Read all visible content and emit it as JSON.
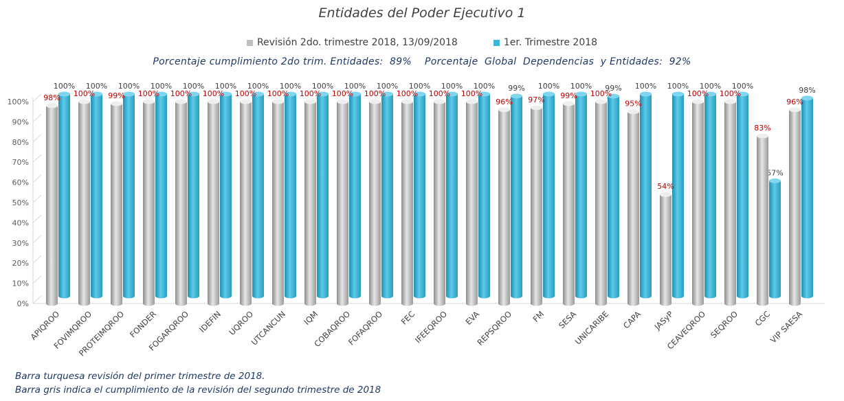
{
  "chart_data": {
    "type": "bar",
    "title": "Entidades del Poder Ejecutivo 1",
    "subtitle": "Porcentaje cumplimiento 2do trim. Entidades:  89%    Porcentaje  Global  Dependencias  y Entidades:  92%",
    "categories": [
      "APIQROO",
      "FOVIMQROO",
      "PROTEIMQROO",
      "FONDER",
      "FOGARQROO",
      "IDEFIN",
      "UQROO",
      "UTCANCUN",
      "IQM",
      "COBAQROO",
      "FOFAQROO",
      "FEC",
      "IFEEQROO",
      "EVA",
      "REPSQROO",
      "FM",
      "SESA",
      "UNICARIBE",
      "CAPA",
      "JASyP",
      "CEAVEQROO",
      "SEQROO",
      "CGC",
      "VIP SAESA"
    ],
    "series": [
      {
        "name": "Revisión 2do. trimestre 2018, 13/09/2018",
        "color": "#bfbfbf",
        "values": [
          98,
          100,
          99,
          100,
          100,
          100,
          100,
          100,
          100,
          100,
          100,
          100,
          100,
          100,
          96,
          97,
          99,
          100,
          95,
          54,
          100,
          100,
          83,
          96
        ],
        "labels": [
          "98%",
          "100%",
          "99%",
          "100%",
          "100%",
          "100%",
          "100%",
          "100%",
          "100%",
          "100%",
          "100%",
          "100%",
          "100%",
          "100%",
          "96%",
          "97%",
          "99%",
          "100%",
          "95%",
          "54%",
          "100%",
          "100%",
          "83%",
          "96%"
        ]
      },
      {
        "name": "1er. Trimestre 2018",
        "color": "#3fb5d6",
        "values": [
          100,
          100,
          100,
          100,
          100,
          100,
          100,
          100,
          100,
          100,
          100,
          100,
          100,
          100,
          99,
          100,
          100,
          99,
          100,
          100,
          100,
          100,
          57,
          98
        ],
        "labels": [
          "100%",
          "100%",
          "100%",
          "100%",
          "100%",
          "100%",
          "100%",
          "100%",
          "100%",
          "100%",
          "100%",
          "100%",
          "100%",
          "100%",
          "99%",
          "100%",
          "100%",
          "99%",
          "100%",
          "100%",
          "100%",
          "100%",
          "57%",
          "98%"
        ]
      }
    ],
    "yticks": [
      "0%",
      "10%",
      "20%",
      "30%",
      "40%",
      "50%",
      "60%",
      "70%",
      "80%",
      "90%",
      "100%"
    ],
    "ylim": [
      0,
      100
    ],
    "label_colors": {
      "gray_bar": "#c00000",
      "teal_bar": "#404040"
    },
    "legend_position": "top"
  },
  "footnotes": {
    "line1": "Barra turquesa  revisión  del  primer trimestre  de  2018.",
    "line2": "Barra gris indica el cumplimiento  de la revisión del segundo trimestre  de 2018"
  }
}
